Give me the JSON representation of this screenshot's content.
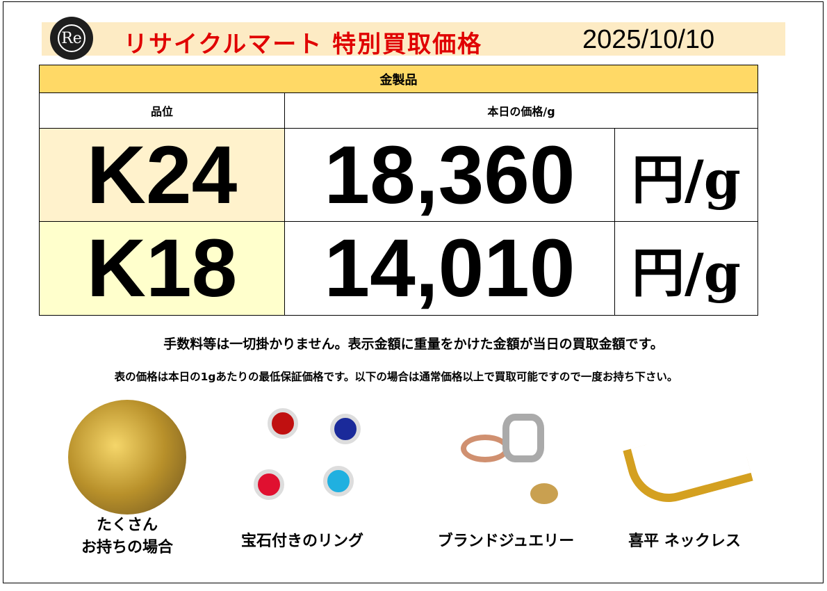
{
  "header": {
    "logo_text": "Re",
    "title": "リサイクルマート 特別買取価格",
    "date": "2025/10/10"
  },
  "table": {
    "category": "金製品",
    "col_grade": "品位",
    "col_price": "本日の価格/g",
    "rows": [
      {
        "grade": "K24",
        "price": "18,360",
        "unit": "円/g",
        "bg": "#fff2cc"
      },
      {
        "grade": "K18",
        "price": "14,010",
        "unit": "円/g",
        "bg": "#ffffcc"
      }
    ]
  },
  "notes": [
    "手数料等は一切掛かりません。表示金額に重量をかけた金額が当日の買取金額です。",
    "表の価格は本日の1gあたりの最低保証価格です。以下の場合は通常価格以上で買取可能ですので一度お持ち下さい。"
  ],
  "items": [
    {
      "caption1": "たくさん",
      "caption2": "お持ちの場合"
    },
    {
      "caption1": "宝石付きのリング"
    },
    {
      "caption1": "ブランドジュエリー"
    },
    {
      "caption1": "喜平 ネックレス"
    }
  ],
  "colors": {
    "title": "#e00000",
    "band": "#fdebc4",
    "category": "#ffd966"
  }
}
